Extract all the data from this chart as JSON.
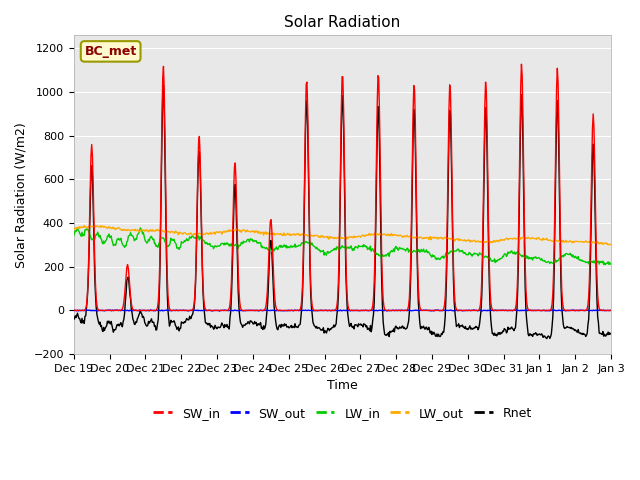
{
  "title": "Solar Radiation",
  "ylabel": "Solar Radiation (W/m2)",
  "xlabel": "Time",
  "ylim": [
    -200,
    1260
  ],
  "station_label": "BC_met",
  "x_tick_labels": [
    "Dec 19",
    "Dec 20",
    "Dec 21",
    "Dec 22",
    "Dec 23",
    "Dec 24",
    "Dec 25",
    "Dec 26",
    "Dec 27",
    "Dec 28",
    "Dec 29",
    "Dec 30",
    "Dec 31",
    "Jan 1",
    "Jan 2",
    "Jan 3"
  ],
  "legend": [
    "SW_in",
    "SW_out",
    "LW_in",
    "LW_out",
    "Rnet"
  ],
  "line_colors": [
    "#ff0000",
    "#0000ff",
    "#00cc00",
    "#ffaa00",
    "#000000"
  ],
  "line_widths": [
    1.0,
    1.0,
    1.0,
    1.0,
    1.0
  ],
  "background_color": "#ffffff",
  "plot_bg_color": "#e8e8e8",
  "title_fontsize": 11,
  "label_fontsize": 9,
  "tick_fontsize": 8
}
